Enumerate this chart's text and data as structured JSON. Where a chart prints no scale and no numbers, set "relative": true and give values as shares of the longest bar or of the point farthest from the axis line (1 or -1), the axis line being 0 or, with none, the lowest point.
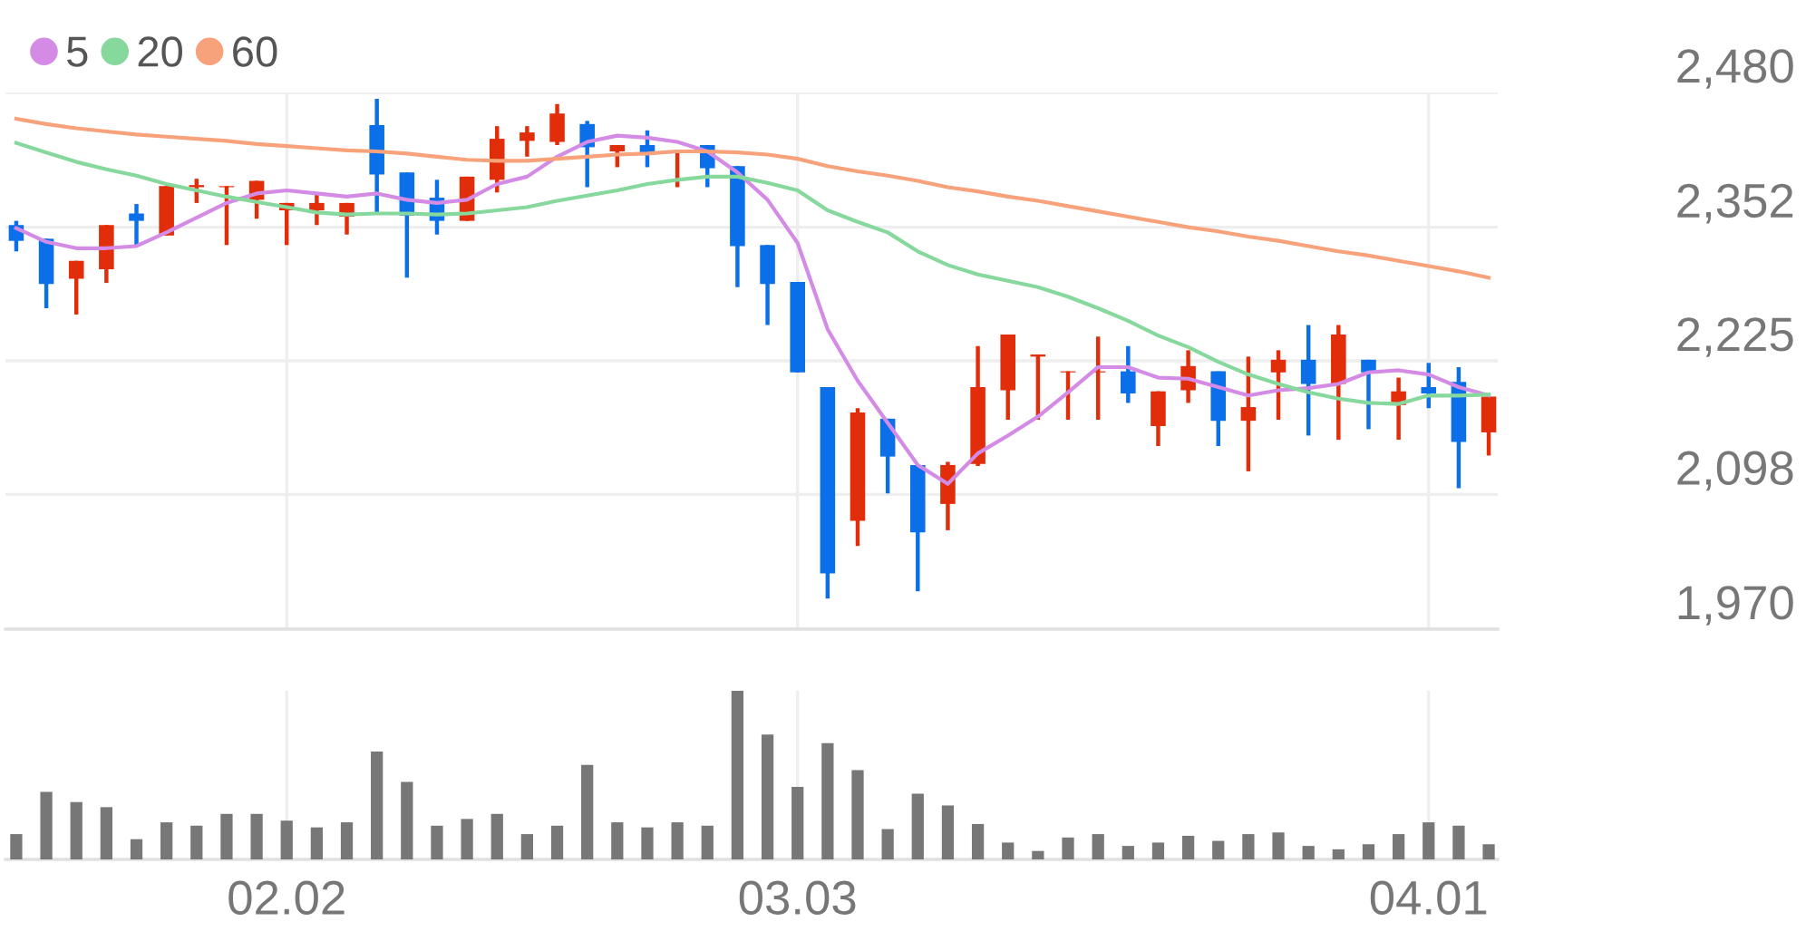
{
  "chart_data": [
    {
      "type": "candlestick",
      "categories": [
        null,
        null,
        null,
        null,
        null,
        null,
        null,
        null,
        null,
        "02.02",
        null,
        null,
        null,
        null,
        null,
        null,
        null,
        null,
        null,
        null,
        null,
        null,
        null,
        null,
        null,
        null,
        "03.03",
        null,
        null,
        null,
        null,
        null,
        null,
        null,
        null,
        null,
        null,
        null,
        null,
        null,
        null,
        null,
        null,
        null,
        null,
        null,
        null,
        "04.01",
        null,
        null
      ],
      "ohlc": [
        [
          2354,
          2358,
          2329,
          2339
        ],
        [
          2341,
          2341,
          2275,
          2298
        ],
        [
          2303,
          2320,
          2269,
          2320
        ],
        [
          2312,
          2354,
          2299,
          2354
        ],
        [
          2365,
          2374,
          2334,
          2358
        ],
        [
          2344,
          2391,
          2344,
          2391
        ],
        [
          2390,
          2398,
          2375,
          2392
        ],
        [
          2390,
          2391,
          2335,
          2391
        ],
        [
          2378,
          2396,
          2360,
          2396
        ],
        [
          2368,
          2375,
          2335,
          2375
        ],
        [
          2368,
          2384,
          2354,
          2375
        ],
        [
          2362,
          2375,
          2345,
          2375
        ],
        [
          2449,
          2474,
          2364,
          2402
        ],
        [
          2404,
          2404,
          2304,
          2363
        ],
        [
          2380,
          2397,
          2345,
          2358
        ],
        [
          2358,
          2400,
          2358,
          2400
        ],
        [
          2397,
          2448,
          2385,
          2436
        ],
        [
          2434,
          2448,
          2419,
          2442
        ],
        [
          2433,
          2469,
          2430,
          2460
        ],
        [
          2450,
          2453,
          2390,
          2428
        ],
        [
          2424,
          2430,
          2409,
          2430
        ],
        [
          2430,
          2444,
          2409,
          2423
        ],
        [
          2424,
          2425,
          2390,
          2425
        ],
        [
          2430,
          2430,
          2390,
          2408
        ],
        [
          2410,
          2410,
          2295,
          2334
        ],
        [
          2335,
          2335,
          2259,
          2298
        ],
        [
          2300,
          2300,
          2214,
          2214
        ],
        [
          2200,
          2200,
          1999,
          2023
        ],
        [
          2073,
          2180,
          2049,
          2176
        ],
        [
          2170,
          2170,
          2099,
          2134
        ],
        [
          2126,
          2126,
          2006,
          2062
        ],
        [
          2089,
          2129,
          2064,
          2126
        ],
        [
          2127,
          2239,
          2125,
          2200
        ],
        [
          2197,
          2250,
          2169,
          2250
        ],
        [
          2229,
          2231,
          2169,
          2231
        ],
        [
          2214,
          2215,
          2169,
          2215
        ],
        [
          2214,
          2248,
          2169,
          2215
        ],
        [
          2215,
          2239,
          2185,
          2194
        ],
        [
          2163,
          2196,
          2144,
          2196
        ],
        [
          2197,
          2235,
          2185,
          2220
        ],
        [
          2215,
          2215,
          2144,
          2168
        ],
        [
          2168,
          2229,
          2120,
          2181
        ],
        [
          2214,
          2235,
          2169,
          2226
        ],
        [
          2226,
          2259,
          2154,
          2203
        ],
        [
          2203,
          2259,
          2150,
          2250
        ],
        [
          2226,
          2226,
          2160,
          2214
        ],
        [
          2183,
          2209,
          2150,
          2196
        ],
        [
          2200,
          2223,
          2180,
          2194
        ],
        [
          2205,
          2219,
          2104,
          2148
        ],
        [
          2157,
          2191,
          2135,
          2191
        ]
      ],
      "colors": [
        "#0a6fe8",
        "#0a6fe8",
        "#e12d09",
        "#e12d09",
        "#0a6fe8",
        "#e12d09",
        "#e12d09",
        "#e12d09",
        "#e12d09",
        "#e12d09",
        "#e12d09",
        "#e12d09",
        "#0a6fe8",
        "#0a6fe8",
        "#0a6fe8",
        "#e12d09",
        "#e12d09",
        "#e12d09",
        "#e12d09",
        "#0a6fe8",
        "#e12d09",
        "#0a6fe8",
        "#e12d09",
        "#0a6fe8",
        "#0a6fe8",
        "#0a6fe8",
        "#0a6fe8",
        "#0a6fe8",
        "#e12d09",
        "#0a6fe8",
        "#0a6fe8",
        "#e12d09",
        "#e12d09",
        "#e12d09",
        "#e12d09",
        "#e12d09",
        "#e12d09",
        "#0a6fe8",
        "#e12d09",
        "#e12d09",
        "#0a6fe8",
        "#e12d09",
        "#e12d09",
        "#0a6fe8",
        "#e12d09",
        "#0a6fe8",
        "#e12d09",
        "#0a6fe8",
        "#0a6fe8",
        "#e12d09"
      ],
      "series": [
        {
          "type": "line",
          "name": "5",
          "color": "#d48be6",
          "values": [
            2351,
            2338,
            2332,
            2332,
            2334,
            2347,
            2361,
            2375,
            2384,
            2387,
            2384,
            2381,
            2384,
            2378,
            2375,
            2378,
            2393,
            2400,
            2419,
            2433,
            2439,
            2437,
            2433,
            2424,
            2404,
            2378,
            2337,
            2255,
            2206,
            2166,
            2126,
            2108,
            2137,
            2154,
            2172,
            2195,
            2219,
            2219,
            2209,
            2208,
            2200,
            2192,
            2197,
            2199,
            2203,
            2214,
            2216,
            2212,
            2200,
            2192
          ]
        },
        {
          "type": "line",
          "name": "20",
          "color": "#86d89c",
          "values": [
            2432,
            2423,
            2414,
            2407,
            2401,
            2393,
            2387,
            2381,
            2376,
            2371,
            2366,
            2364,
            2365,
            2365,
            2364,
            2365,
            2368,
            2371,
            2377,
            2382,
            2387,
            2393,
            2397,
            2400,
            2400,
            2394,
            2387,
            2368,
            2357,
            2347,
            2329,
            2316,
            2307,
            2301,
            2295,
            2286,
            2275,
            2263,
            2249,
            2238,
            2224,
            2212,
            2203,
            2195,
            2189,
            2185,
            2184,
            2192,
            2192,
            2193
          ]
        },
        {
          "type": "line",
          "name": "60",
          "color": "#f7a27a",
          "values": [
            2455,
            2450,
            2446,
            2443,
            2440,
            2438,
            2436,
            2434,
            2431,
            2429,
            2427,
            2425,
            2424,
            2422,
            2419,
            2416,
            2415,
            2415,
            2417,
            2419,
            2421,
            2422,
            2424,
            2424,
            2423,
            2421,
            2417,
            2410,
            2405,
            2401,
            2396,
            2390,
            2386,
            2381,
            2377,
            2372,
            2367,
            2362,
            2357,
            2352,
            2348,
            2343,
            2339,
            2334,
            2329,
            2325,
            2320,
            2315,
            2310,
            2304
          ]
        }
      ],
      "ylim": [
        1970,
        2480
      ],
      "yticks": [
        {
          "value": 1970,
          "label": "1,970"
        },
        {
          "value": 2098,
          "label": "2,098"
        },
        {
          "value": 2225,
          "label": "2,225"
        },
        {
          "value": 2352,
          "label": "2,352"
        },
        {
          "value": 2480,
          "label": "2,480"
        }
      ],
      "grid": true,
      "legend": "top left",
      "tick_labels": "y"
    },
    {
      "type": "bar",
      "categories": [
        null,
        null,
        null,
        null,
        null,
        null,
        null,
        null,
        null,
        "02.02",
        null,
        null,
        null,
        null,
        null,
        null,
        null,
        null,
        null,
        null,
        null,
        null,
        null,
        null,
        null,
        null,
        "03.03",
        null,
        null,
        null,
        null,
        null,
        null,
        null,
        null,
        null,
        null,
        null,
        null,
        null,
        null,
        null,
        null,
        null,
        null,
        null,
        null,
        "04.01",
        null,
        null
      ],
      "values": [
        0.15,
        0.4,
        0.34,
        0.31,
        0.12,
        0.22,
        0.2,
        0.27,
        0.27,
        0.23,
        0.19,
        0.22,
        0.64,
        0.46,
        0.2,
        0.24,
        0.27,
        0.15,
        0.2,
        0.56,
        0.22,
        0.19,
        0.22,
        0.2,
        1,
        0.74,
        0.43,
        0.69,
        0.53,
        0.18,
        0.39,
        0.32,
        0.21,
        0.1,
        0.05,
        0.13,
        0.15,
        0.08,
        0.1,
        0.14,
        0.11,
        0.15,
        0.16,
        0.08,
        0.06,
        0.09,
        0.15,
        0.22,
        0.2,
        0.09
      ],
      "color": "#777777",
      "relative": true,
      "grid": "x",
      "tick_labels": "x"
    }
  ]
}
